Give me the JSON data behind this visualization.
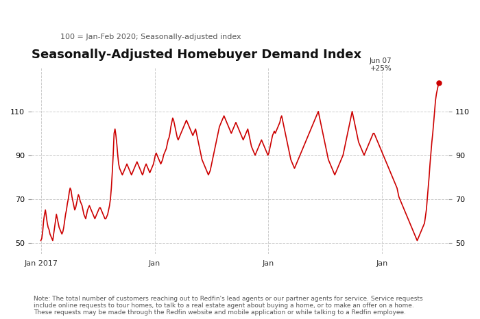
{
  "title": "Seasonally-Adjusted Homebuyer Demand Index",
  "subtitle": "100 = Jan-Feb 2020; Seasonally-adjusted index",
  "note": "Note: The total number of customers reaching out to Redfin's lead agents or our partner agents for service. Service requests\ninclude online requests to tour homes, to talk to a real estate agent about buying a home, or to make an offer on a home.\nThese requests may be made through the Redfin website and mobile application or while talking to a Redfin employee.",
  "line_color": "#CC0000",
  "background_color": "#FFFFFF",
  "grid_color": "#CCCCCC",
  "yticks": [
    50,
    70,
    90,
    110
  ],
  "ylim": [
    45,
    130
  ],
  "annotation_label": "Jun 07\n+25%",
  "x_tick_labels": [
    "Jan 2017",
    "Jan",
    "Jan",
    "Jan"
  ],
  "data": [
    51,
    52,
    55,
    60,
    63,
    65,
    62,
    59,
    57,
    56,
    54,
    53,
    52,
    51,
    54,
    57,
    60,
    63,
    61,
    59,
    57,
    56,
    55,
    54,
    55,
    57,
    60,
    63,
    65,
    68,
    70,
    73,
    75,
    74,
    71,
    69,
    67,
    65,
    66,
    68,
    70,
    72,
    71,
    69,
    68,
    67,
    65,
    63,
    62,
    61,
    63,
    65,
    66,
    67,
    66,
    65,
    64,
    63,
    62,
    61,
    62,
    63,
    64,
    65,
    66,
    66,
    65,
    64,
    63,
    62,
    61,
    61,
    62,
    63,
    65,
    67,
    70,
    75,
    82,
    90,
    100,
    102,
    99,
    95,
    90,
    86,
    84,
    83,
    82,
    81,
    82,
    83,
    84,
    85,
    86,
    85,
    84,
    83,
    82,
    81,
    82,
    83,
    84,
    85,
    86,
    87,
    86,
    85,
    84,
    83,
    82,
    81,
    82,
    84,
    85,
    86,
    85,
    84,
    83,
    82,
    83,
    84,
    85,
    86,
    88,
    90,
    91,
    90,
    89,
    88,
    87,
    86,
    87,
    88,
    90,
    91,
    92,
    93,
    95,
    97,
    98,
    100,
    103,
    105,
    107,
    106,
    104,
    102,
    100,
    98,
    97,
    98,
    99,
    100,
    101,
    102,
    103,
    104,
    105,
    106,
    105,
    104,
    103,
    102,
    101,
    100,
    99,
    100,
    101,
    102,
    100,
    98,
    96,
    94,
    92,
    90,
    88,
    87,
    86,
    85,
    84,
    83,
    82,
    81,
    82,
    83,
    85,
    87,
    89,
    91,
    93,
    95,
    97,
    99,
    101,
    103,
    104,
    105,
    106,
    107,
    108,
    107,
    106,
    105,
    104,
    103,
    102,
    101,
    100,
    101,
    102,
    103,
    104,
    105,
    104,
    103,
    102,
    101,
    100,
    99,
    98,
    97,
    98,
    99,
    100,
    101,
    102,
    100,
    98,
    96,
    94,
    93,
    92,
    91,
    90,
    91,
    92,
    93,
    94,
    95,
    96,
    97,
    96,
    95,
    94,
    93,
    92,
    91,
    90,
    91,
    93,
    95,
    97,
    99,
    100,
    101,
    100,
    101,
    102,
    103,
    104,
    105,
    107,
    108,
    106,
    104,
    102,
    100,
    98,
    96,
    94,
    92,
    90,
    88,
    87,
    86,
    85,
    84,
    85,
    86,
    87,
    88,
    89,
    90,
    91,
    92,
    93,
    94,
    95,
    96,
    97,
    98,
    99,
    100,
    101,
    102,
    103,
    104,
    105,
    106,
    107,
    108,
    109,
    110,
    108,
    106,
    104,
    102,
    100,
    98,
    96,
    94,
    92,
    90,
    88,
    87,
    86,
    85,
    84,
    83,
    82,
    81,
    82,
    83,
    84,
    85,
    86,
    87,
    88,
    89,
    90,
    92,
    94,
    96,
    98,
    100,
    102,
    104,
    106,
    108,
    110,
    108,
    106,
    104,
    102,
    100,
    98,
    96,
    95,
    94,
    93,
    92,
    91,
    90,
    91,
    92,
    93,
    94,
    95,
    96,
    97,
    98,
    99,
    100,
    100,
    99,
    98,
    97,
    96,
    95,
    94,
    93,
    92,
    91,
    90,
    89,
    88,
    87,
    86,
    85,
    84,
    83,
    82,
    81,
    80,
    79,
    78,
    77,
    76,
    75,
    73,
    71,
    70,
    69,
    68,
    67,
    66,
    65,
    64,
    63,
    62,
    61,
    60,
    59,
    58,
    57,
    56,
    55,
    54,
    53,
    52,
    51,
    52,
    53,
    54,
    55,
    56,
    57,
    58,
    59,
    62,
    65,
    70,
    75,
    80,
    86,
    91,
    96,
    100,
    105,
    110,
    115,
    118,
    120,
    122,
    123
  ]
}
